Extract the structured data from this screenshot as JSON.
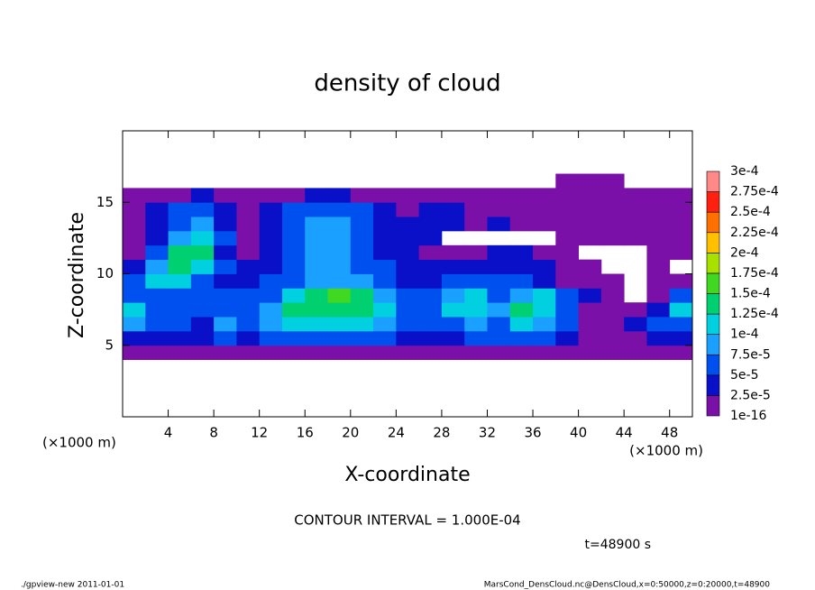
{
  "chart_data": {
    "type": "heatmap",
    "title": "density of cloud",
    "x_label": "X-coordinate",
    "y_label": "Z-coordinate",
    "x_unit_label": "(×1000 m)",
    "y_unit_label": "(×1000 m)",
    "contour_note": "CONTOUR INTERVAL = 1.000E-04",
    "time_label": "t=48900 s",
    "footer_left": "./gpview-new  2011-01-01",
    "footer_right": "MarsCond_DensCloud.nc@DensCloud,x=0:50000,z=0:20000,t=48900",
    "xlim": [
      0,
      50
    ],
    "ylim": [
      0,
      20
    ],
    "xticks": [
      4,
      8,
      12,
      16,
      20,
      24,
      28,
      32,
      36,
      40,
      44,
      48
    ],
    "yticks": [
      5,
      10,
      15
    ],
    "x_edges": [
      0,
      2,
      4,
      6,
      8,
      10,
      12,
      14,
      16,
      18,
      20,
      22,
      24,
      26,
      28,
      30,
      32,
      34,
      36,
      38,
      40,
      42,
      44,
      46,
      48,
      50
    ],
    "y_edges": [
      4,
      5,
      6,
      7,
      8,
      9,
      10,
      11,
      12,
      13,
      14,
      15,
      16,
      17,
      18
    ],
    "z": [
      [
        1e-05,
        1e-05,
        1e-05,
        1e-05,
        1e-05,
        1e-05,
        1e-05,
        1e-05,
        1e-05,
        1e-05,
        1e-05,
        1e-05,
        1e-05,
        1e-05,
        1e-05,
        1e-05,
        1e-05,
        1e-05,
        1e-05,
        1e-05,
        1e-05,
        1e-05,
        1e-05,
        1e-05,
        1e-05
      ],
      [
        4e-05,
        3e-05,
        4e-05,
        4e-05,
        5e-05,
        4e-05,
        6e-05,
        7e-05,
        7e-05,
        7e-05,
        6e-05,
        5e-05,
        4e-05,
        4e-05,
        4e-05,
        5e-05,
        5e-05,
        5e-05,
        5e-05,
        3e-05,
        2e-05,
        1e-05,
        2e-05,
        3e-05,
        3e-05
      ],
      [
        8e-05,
        6e-05,
        5e-05,
        4e-05,
        9e-05,
        6e-05,
        8e-05,
        0.00011,
        0.00011,
        0.00011,
        0.0001,
        8e-05,
        5e-05,
        6e-05,
        7e-05,
        8e-05,
        7e-05,
        0.0001,
        8e-05,
        5e-05,
        2e-05,
        1e-05,
        3e-05,
        5e-05,
        6e-05
      ],
      [
        0.00011,
        6e-05,
        5e-05,
        6e-05,
        5e-05,
        6e-05,
        9e-05,
        0.00014,
        0.00014,
        0.00014,
        0.00013,
        0.00011,
        6e-05,
        6e-05,
        0.00011,
        0.00012,
        9e-05,
        0.00013,
        0.00012,
        7e-05,
        2e-05,
        1e-05,
        2e-05,
        4e-05,
        0.0001
      ],
      [
        7e-05,
        7e-05,
        6e-05,
        5e-05,
        5e-05,
        5e-05,
        6e-05,
        0.00011,
        0.00014,
        0.00015,
        0.00013,
        8e-05,
        5e-05,
        5e-05,
        9e-05,
        0.00011,
        7e-05,
        8e-05,
        0.00011,
        6e-05,
        3e-05,
        1e-05,
        null,
        2e-05,
        5e-05
      ],
      [
        5e-05,
        0.00011,
        0.00012,
        6e-05,
        4e-05,
        4e-05,
        5e-05,
        7e-05,
        9e-05,
        9e-05,
        8e-05,
        5e-05,
        4e-05,
        4e-05,
        5e-05,
        5e-05,
        5e-05,
        6e-05,
        4e-05,
        2e-05,
        1e-05,
        1e-05,
        null,
        1e-05,
        1e-05
      ],
      [
        3e-05,
        9e-05,
        0.00014,
        0.00012,
        5e-05,
        3e-05,
        4e-05,
        6e-05,
        8e-05,
        9e-05,
        7e-05,
        5e-05,
        3e-05,
        3e-05,
        3e-05,
        3e-05,
        4e-05,
        3e-05,
        3e-05,
        2e-05,
        1e-05,
        null,
        null,
        1e-05,
        null
      ],
      [
        2e-05,
        5e-05,
        0.00013,
        0.00013,
        4e-05,
        2e-05,
        4e-05,
        6e-05,
        8e-05,
        9e-05,
        7e-05,
        4e-05,
        3e-05,
        2e-05,
        2e-05,
        1e-05,
        3e-05,
        3e-05,
        2e-05,
        1e-05,
        null,
        null,
        null,
        1e-05,
        1e-05
      ],
      [
        1e-05,
        4e-05,
        8e-05,
        0.00011,
        5e-05,
        2e-05,
        4e-05,
        6e-05,
        8e-05,
        9e-05,
        7e-05,
        4e-05,
        3e-05,
        3e-05,
        null,
        null,
        null,
        null,
        null,
        1e-05,
        1e-05,
        1e-05,
        1e-05,
        1e-05,
        1e-05
      ],
      [
        1e-05,
        3e-05,
        6e-05,
        8e-05,
        4e-05,
        1e-05,
        4e-05,
        6e-05,
        8e-05,
        8e-05,
        6e-05,
        4e-05,
        3e-05,
        3e-05,
        4e-05,
        2e-05,
        3e-05,
        2e-05,
        1e-05,
        1e-05,
        1e-05,
        1e-05,
        1e-05,
        1e-05,
        1e-05
      ],
      [
        1e-05,
        3e-05,
        5e-05,
        6e-05,
        3e-05,
        1e-05,
        3e-05,
        5e-05,
        6e-05,
        6e-05,
        5e-05,
        3e-05,
        2e-05,
        3e-05,
        3e-05,
        1e-05,
        2e-05,
        2e-05,
        1e-05,
        1e-05,
        1e-05,
        1e-05,
        1e-05,
        1e-05,
        1e-05
      ],
      [
        1e-05,
        1e-05,
        2e-05,
        3e-05,
        1e-05,
        1e-05,
        1e-05,
        2e-05,
        3e-05,
        3e-05,
        2e-05,
        1e-05,
        1e-05,
        1e-05,
        1e-05,
        1e-05,
        1e-05,
        1e-05,
        1e-05,
        1e-05,
        1e-05,
        1e-05,
        1e-05,
        1e-05,
        1e-05
      ],
      [
        null,
        null,
        null,
        null,
        null,
        null,
        null,
        null,
        null,
        null,
        null,
        null,
        null,
        null,
        null,
        null,
        null,
        null,
        null,
        1e-05,
        1e-05,
        1e-05,
        null,
        null,
        null
      ],
      [
        null,
        null,
        null,
        null,
        null,
        null,
        null,
        null,
        null,
        null,
        null,
        null,
        null,
        null,
        null,
        null,
        null,
        null,
        null,
        null,
        null,
        null,
        null,
        null,
        null
      ]
    ],
    "colorbar": {
      "levels": [
        {
          "value": 1e-16,
          "label": "1e-16"
        },
        {
          "value": 2.5e-05,
          "label": "2.5e-5"
        },
        {
          "value": 5e-05,
          "label": "5e-5"
        },
        {
          "value": 7.5e-05,
          "label": "7.5e-5"
        },
        {
          "value": 0.0001,
          "label": "1e-4"
        },
        {
          "value": 0.000125,
          "label": "1.25e-4"
        },
        {
          "value": 0.00015,
          "label": "1.5e-4"
        },
        {
          "value": 0.000175,
          "label": "1.75e-4"
        },
        {
          "value": 0.0002,
          "label": "2e-4"
        },
        {
          "value": 0.000225,
          "label": "2.25e-4"
        },
        {
          "value": 0.00025,
          "label": "2.5e-4"
        },
        {
          "value": 0.000275,
          "label": "2.75e-4"
        },
        {
          "value": 0.0003,
          "label": "3e-4"
        }
      ],
      "colors": [
        "#7a10a8",
        "#0a10c8",
        "#0050f0",
        "#1aa0ff",
        "#00d0e0",
        "#00d070",
        "#40d820",
        "#a8e000",
        "#ffc000",
        "#ff7000",
        "#ff2010",
        "#ff8888"
      ]
    }
  }
}
